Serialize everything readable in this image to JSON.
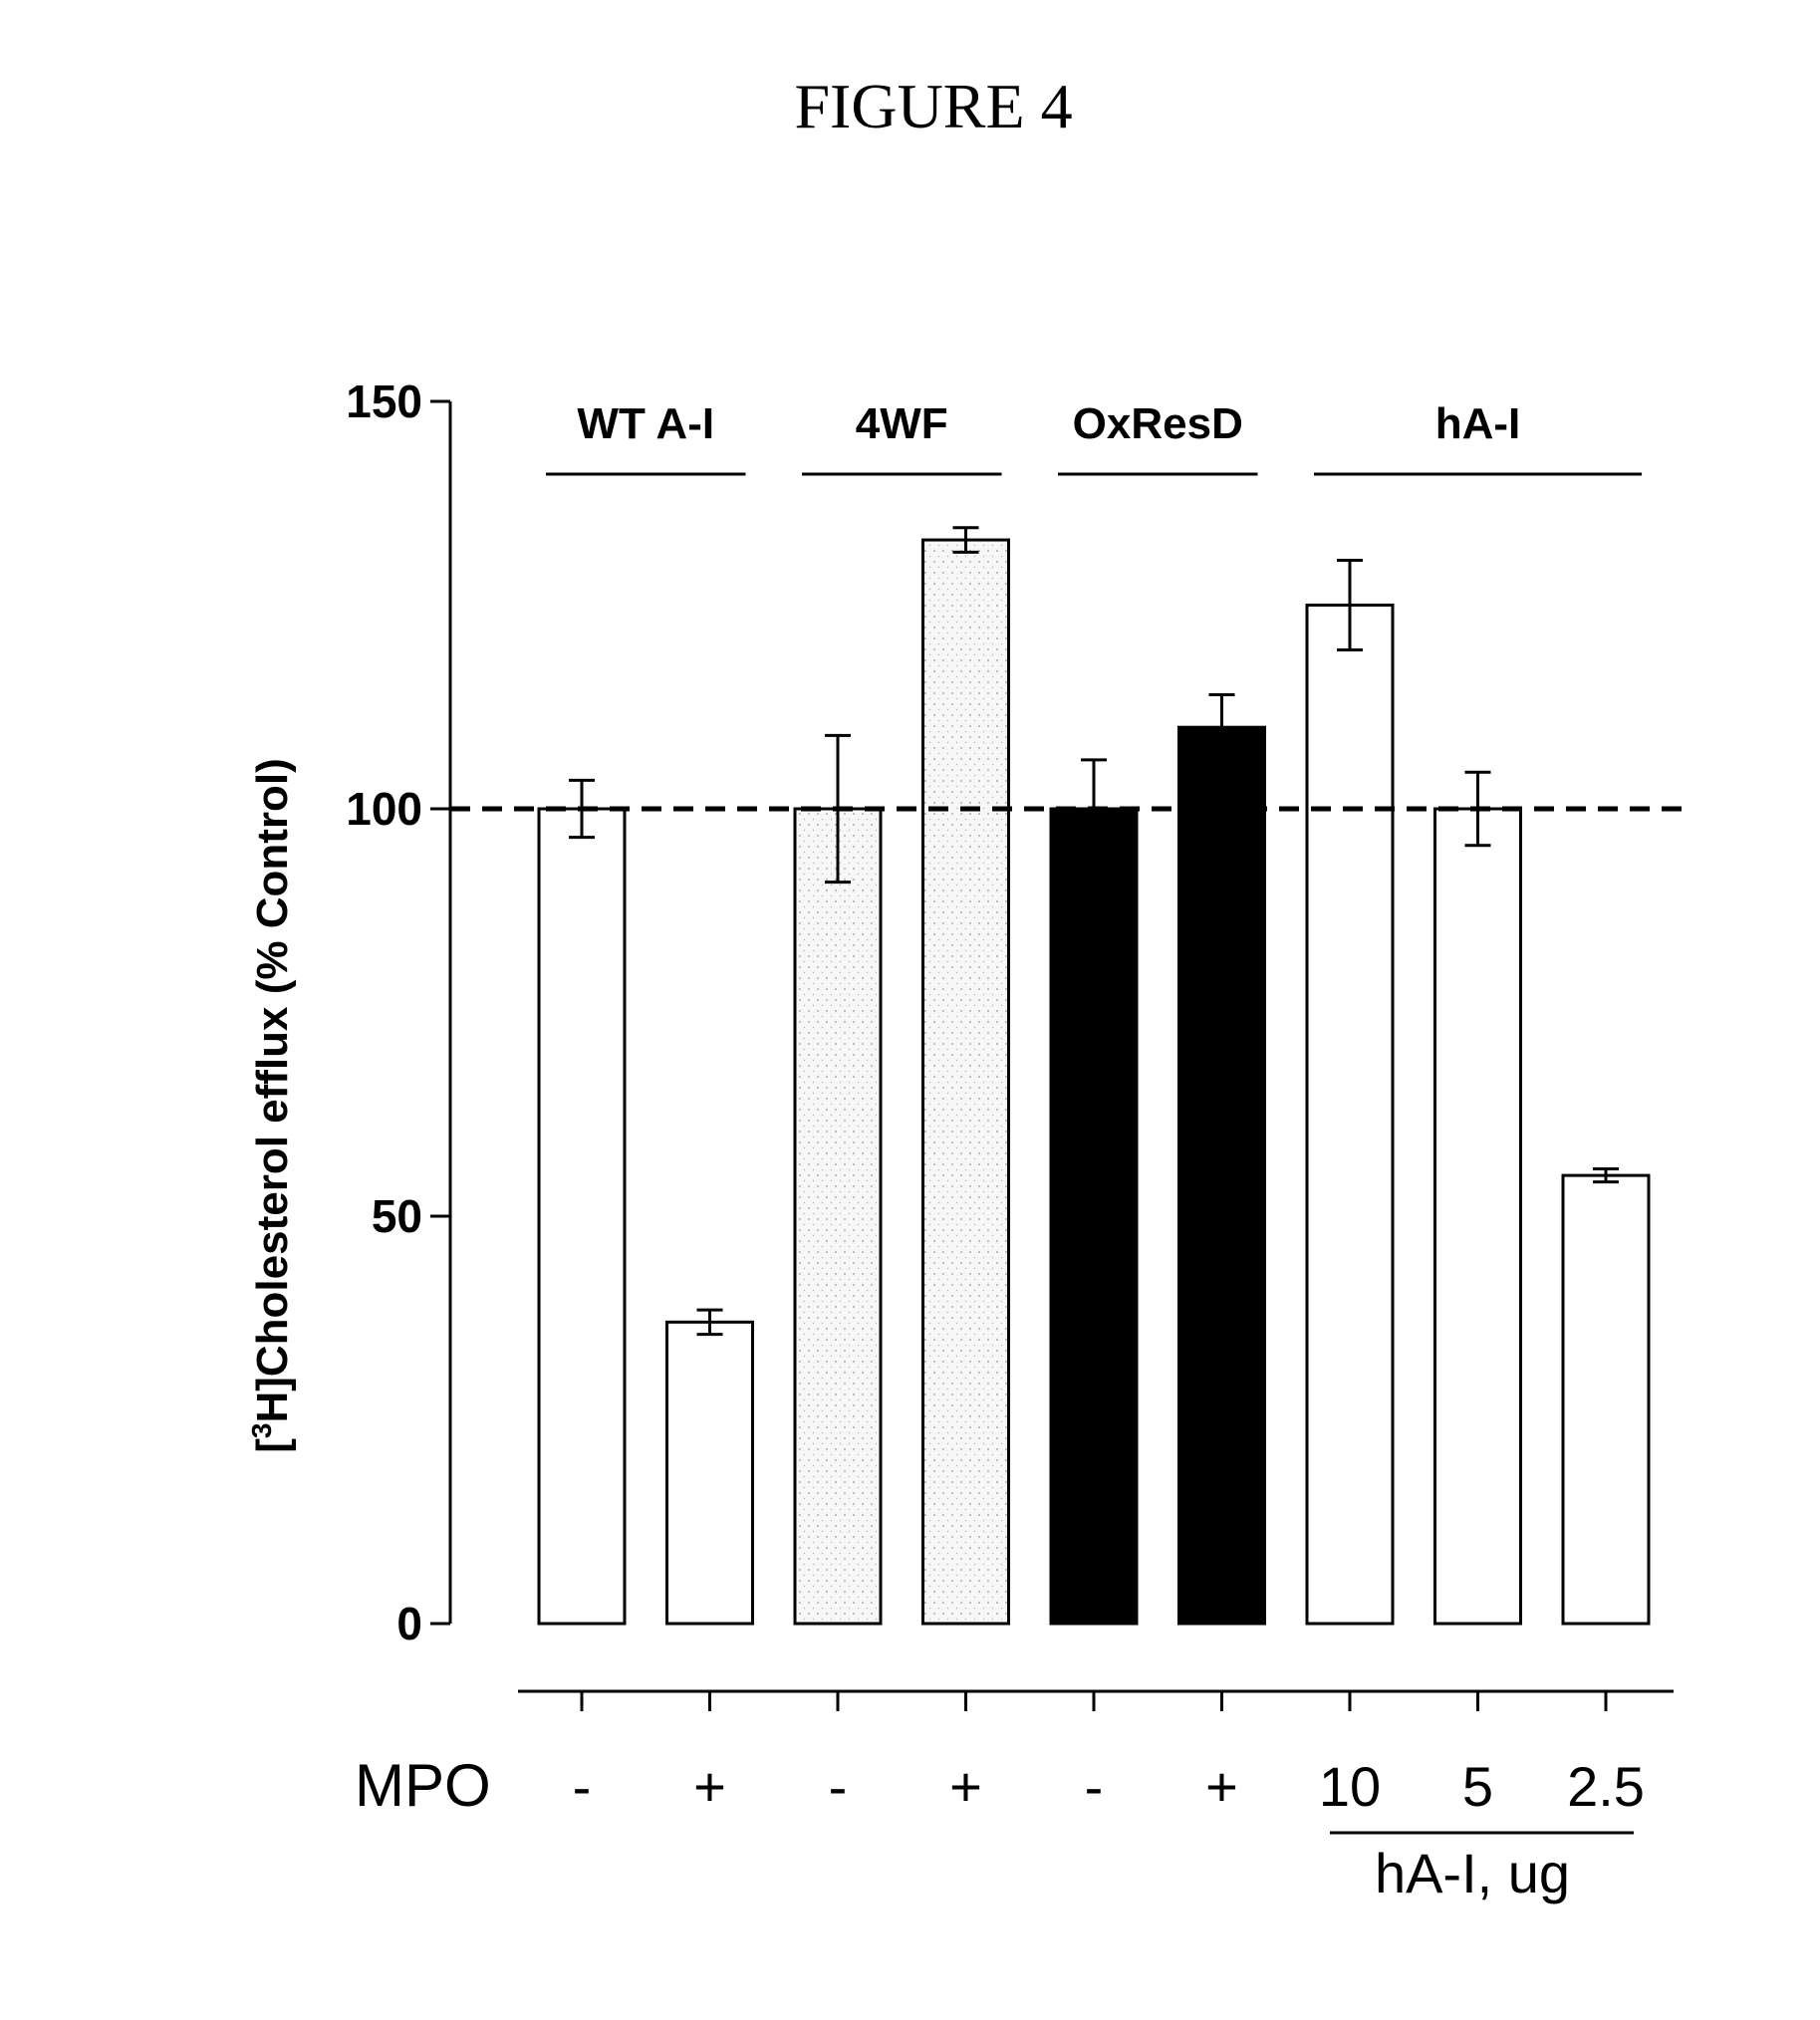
{
  "figure_title": "FIGURE 4",
  "chart_data": {
    "type": "bar",
    "title": "",
    "ylabel_main": "Cholesterol efflux (% Control)",
    "ylabel_bracket_open": "[",
    "ylabel_superscript": "3",
    "ylabel_isotope": "H]",
    "ylim": [
      0,
      150
    ],
    "yticks": [
      0,
      50,
      100,
      150
    ],
    "ytick_labels": [
      "0",
      "50",
      "100",
      "150"
    ],
    "reference_line": 100,
    "row_label": "MPO",
    "categories": [
      "-",
      "+",
      "-",
      "+",
      "-",
      "+",
      "10",
      "5",
      "2.5"
    ],
    "values": [
      100,
      37,
      100,
      133,
      100,
      110,
      125,
      100,
      55
    ],
    "errors": [
      3.5,
      1.5,
      9,
      1.5,
      6,
      4,
      5.5,
      4.5,
      0.8
    ],
    "fills": [
      "white",
      "white",
      "stipple",
      "stipple",
      "black",
      "black",
      "white",
      "white",
      "white"
    ],
    "groups": [
      {
        "label": "WT A-I",
        "start": 0,
        "end": 1
      },
      {
        "label": "4WF",
        "start": 2,
        "end": 3
      },
      {
        "label": "OxResD",
        "start": 4,
        "end": 5
      },
      {
        "label": "hA-I",
        "start": 6,
        "end": 8
      }
    ],
    "sub_axis_label": "hA-I, ug",
    "grid": false,
    "legend": "none"
  }
}
